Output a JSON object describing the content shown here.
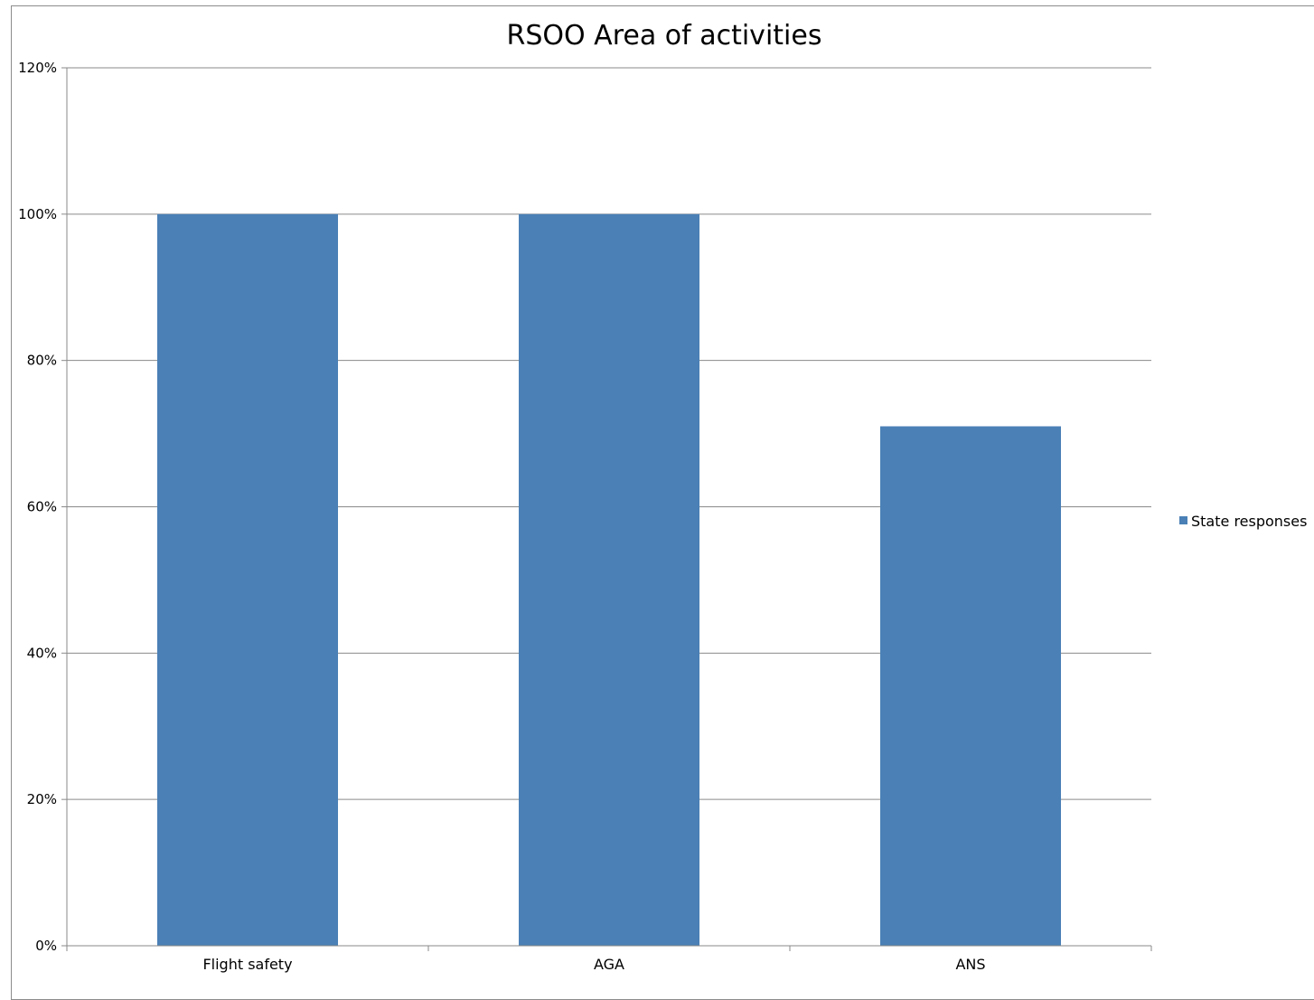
{
  "chart_data": {
    "type": "bar",
    "title": "RSOO Area of activities",
    "xlabel": "",
    "ylabel": "",
    "categories": [
      "Flight safety",
      "AGA",
      "ANS"
    ],
    "series": [
      {
        "name": "State responses",
        "values": [
          1.0,
          1.0,
          0.71
        ],
        "color": "#4a80b6"
      }
    ],
    "ylim": [
      0,
      1.2
    ],
    "yticks": [
      0,
      0.2,
      0.4,
      0.6,
      0.8,
      1.0,
      1.2
    ],
    "ytick_labels": [
      "0%",
      "20%",
      "40%",
      "60%",
      "80%",
      "100%",
      "120%"
    ],
    "grid": true,
    "legend": "right"
  }
}
